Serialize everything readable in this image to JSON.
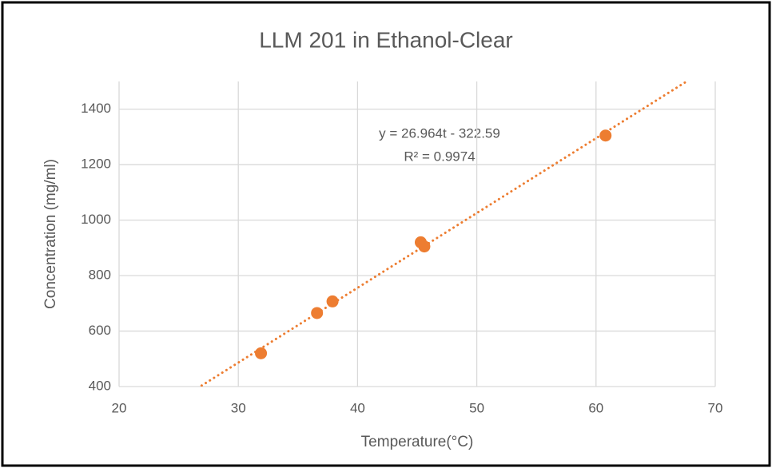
{
  "chart_data": {
    "type": "scatter",
    "title": "LLM 201 in Ethanol-Clear",
    "x_label": "Temperature(°C)",
    "y_label": "Concentration (mg/ml)",
    "series": [
      {
        "name": "LLM 201",
        "color": "#ed7d31",
        "x": [
          31.9,
          36.6,
          37.9,
          45.3,
          45.6,
          60.8
        ],
        "values": [
          520,
          665,
          707,
          920,
          905,
          1305
        ]
      }
    ],
    "trendline": {
      "slope": 26.964,
      "intercept": -322.59,
      "color": "#ed7d31"
    },
    "annotations": [
      "y = 26.964t - 322.59",
      "R² = 0.9974"
    ],
    "xlim": [
      20,
      70
    ],
    "xticks": [
      20,
      30,
      40,
      50,
      60,
      70
    ],
    "ylim": [
      400,
      1500
    ],
    "yticks": [
      400,
      600,
      800,
      1000,
      1200,
      1400
    ],
    "grid": true
  }
}
